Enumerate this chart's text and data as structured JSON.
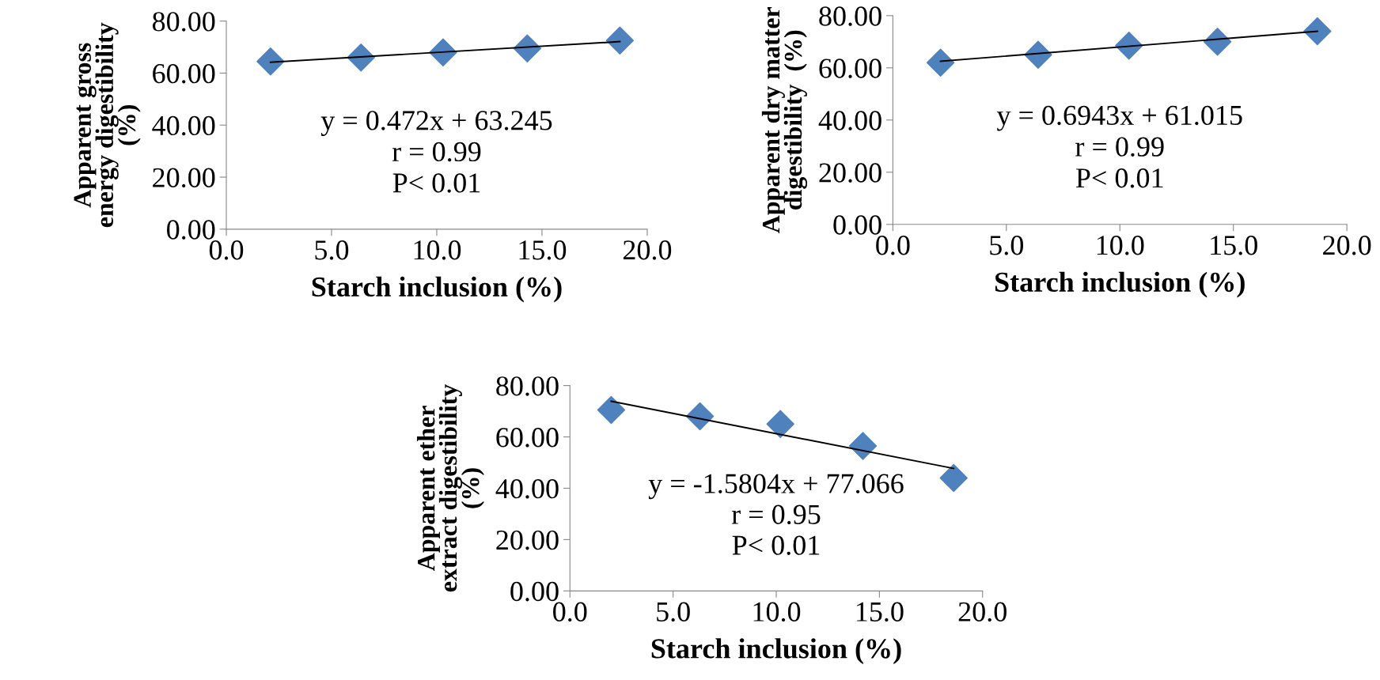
{
  "chart_data": [
    {
      "type": "scatter",
      "xlabel": "Starch inclusion (%)",
      "ylabel": "Apparent gross\nenergy digestibility\n(%)",
      "marker": "diamond",
      "grid": false,
      "legend": false,
      "xlim": [
        0,
        20
      ],
      "xticks": [
        {
          "value": 0,
          "label": "0.0"
        },
        {
          "value": 5,
          "label": "5.0"
        },
        {
          "value": 10,
          "label": "10.0"
        },
        {
          "value": 15,
          "label": "15.0"
        },
        {
          "value": 20,
          "label": "20.0"
        }
      ],
      "ylim": [
        0,
        80
      ],
      "yticks": [
        {
          "value": 0,
          "label": "0.00"
        },
        {
          "value": 20,
          "label": "20.00"
        },
        {
          "value": 40,
          "label": "40.00"
        },
        {
          "value": 60,
          "label": "60.00"
        },
        {
          "value": 80,
          "label": "80.00"
        }
      ],
      "annotations": [
        "y = 0.472x + 63.245",
        "r = 0.99",
        "P< 0.01"
      ],
      "series": [
        {
          "color": "#4f81bd",
          "x": [
            2.1,
            6.4,
            10.3,
            14.3,
            18.7
          ],
          "values": [
            64.5,
            66.0,
            68.0,
            69.5,
            72.5
          ]
        },
        {
          "type": "line",
          "color": "#000000",
          "marker": "none",
          "x": [
            2.1,
            18.7
          ],
          "values": [
            64.2,
            72.1
          ]
        }
      ]
    },
    {
      "type": "scatter",
      "xlabel": "Starch inclusion (%)",
      "ylabel": "Apparent dry matter\ndigestibility  (%)",
      "marker": "diamond",
      "grid": false,
      "legend": false,
      "xlim": [
        0,
        20
      ],
      "xticks": [
        {
          "value": 0,
          "label": "0.0"
        },
        {
          "value": 5,
          "label": "5.0"
        },
        {
          "value": 10,
          "label": "10.0"
        },
        {
          "value": 15,
          "label": "15.0"
        },
        {
          "value": 20,
          "label": "20.0"
        }
      ],
      "ylim": [
        0,
        80
      ],
      "yticks": [
        {
          "value": 0,
          "label": "0.00"
        },
        {
          "value": 20,
          "label": "20.00"
        },
        {
          "value": 40,
          "label": "40.00"
        },
        {
          "value": 60,
          "label": "60.00"
        },
        {
          "value": 80,
          "label": "80.00"
        }
      ],
      "annotations": [
        "y = 0.6943x + 61.015",
        "r = 0.99",
        "P< 0.01"
      ],
      "series": [
        {
          "color": "#4f81bd",
          "x": [
            2.1,
            6.4,
            10.4,
            14.3,
            18.7
          ],
          "values": [
            62.0,
            65.0,
            68.5,
            70.0,
            74.0
          ]
        },
        {
          "type": "line",
          "color": "#000000",
          "marker": "none",
          "x": [
            2.1,
            18.7
          ],
          "values": [
            62.5,
            74.0
          ]
        }
      ]
    },
    {
      "type": "scatter",
      "xlabel": "Starch inclusion (%)",
      "ylabel": "Apparent ether\nextract digestibility\n(%)",
      "marker": "diamond",
      "grid": false,
      "legend": false,
      "xlim": [
        0,
        20
      ],
      "xticks": [
        {
          "value": 0,
          "label": "0.0"
        },
        {
          "value": 5,
          "label": "5.0"
        },
        {
          "value": 10,
          "label": "10.0"
        },
        {
          "value": 15,
          "label": "15.0"
        },
        {
          "value": 20,
          "label": "20.0"
        }
      ],
      "ylim": [
        0,
        80
      ],
      "yticks": [
        {
          "value": 0,
          "label": "0.00"
        },
        {
          "value": 20,
          "label": "20.00"
        },
        {
          "value": 40,
          "label": "40.00"
        },
        {
          "value": 60,
          "label": "60.00"
        },
        {
          "value": 80,
          "label": "80.00"
        }
      ],
      "annotations": [
        "y = -1.5804x + 77.066",
        "r = 0.95",
        "P< 0.01"
      ],
      "series": [
        {
          "color": "#4f81bd",
          "x": [
            2.0,
            6.3,
            10.2,
            14.2,
            18.6
          ],
          "values": [
            70.5,
            68.0,
            65.0,
            56.5,
            44.0
          ]
        },
        {
          "type": "line",
          "color": "#000000",
          "marker": "none",
          "x": [
            2.0,
            18.6
          ],
          "values": [
            73.9,
            47.7
          ]
        }
      ]
    }
  ]
}
